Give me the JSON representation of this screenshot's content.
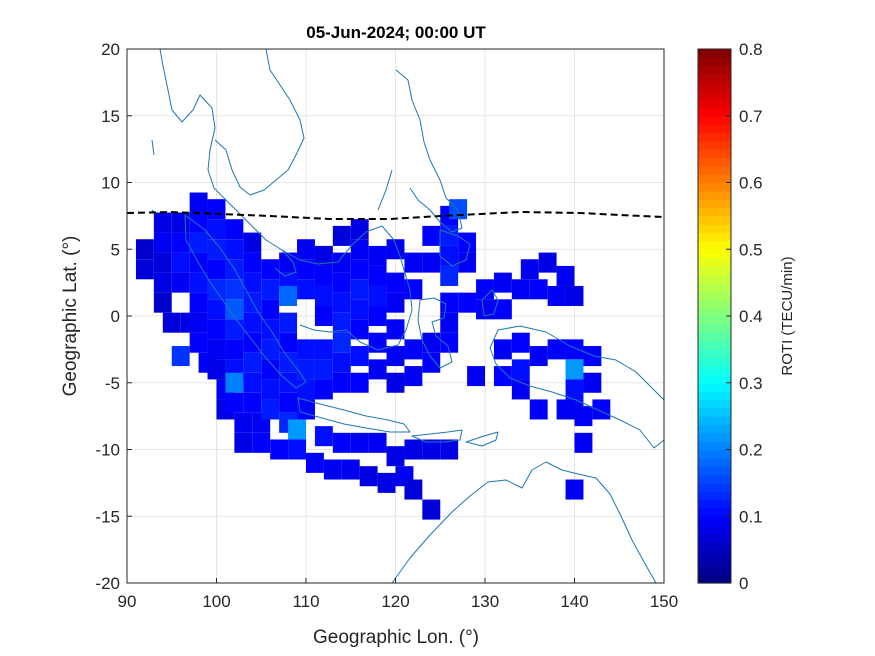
{
  "chart_data": {
    "type": "heatmap",
    "title": "05-Jun-2024; 00:00 UT",
    "xlabel": "Geographic Lon. (°)",
    "ylabel": "Geographic Lat. (°)",
    "xlim": [
      90,
      150
    ],
    "ylim": [
      -20,
      20
    ],
    "xticks": [
      "90",
      "100",
      "110",
      "120",
      "130",
      "140",
      "150"
    ],
    "yticks": [
      "20",
      "15",
      "10",
      "5",
      "0",
      "-5",
      "-10",
      "-15",
      "-20"
    ],
    "grid": true,
    "colormap": "jet",
    "colorbar": {
      "label": "ROTI (TECU/min)",
      "lim": [
        0,
        0.8
      ],
      "ticks": [
        "0",
        "0.1",
        "0.2",
        "0.3",
        "0.4",
        "0.5",
        "0.6",
        "0.7",
        "0.8"
      ],
      "placement": "right"
    },
    "cell_size_deg": [
      2,
      1.5
    ],
    "cells": [
      {
        "lon": 92,
        "lat": 5.0,
        "v": 0.06
      },
      {
        "lon": 92,
        "lat": 3.5,
        "v": 0.07
      },
      {
        "lon": 94,
        "lat": 7.0,
        "v": 0.08
      },
      {
        "lon": 94,
        "lat": 5.5,
        "v": 0.09
      },
      {
        "lon": 94,
        "lat": 4.0,
        "v": 0.07
      },
      {
        "lon": 94,
        "lat": 2.5,
        "v": 0.08
      },
      {
        "lon": 94,
        "lat": 1.0,
        "v": 0.06
      },
      {
        "lon": 95,
        "lat": -0.5,
        "v": 0.07
      },
      {
        "lon": 96,
        "lat": 7.0,
        "v": 0.08
      },
      {
        "lon": 96,
        "lat": 5.5,
        "v": 0.1
      },
      {
        "lon": 96,
        "lat": 4.0,
        "v": 0.11
      },
      {
        "lon": 96,
        "lat": 2.5,
        "v": 0.09
      },
      {
        "lon": 96,
        "lat": -3.0,
        "v": 0.14
      },
      {
        "lon": 97,
        "lat": -0.5,
        "v": 0.08
      },
      {
        "lon": 98,
        "lat": 8.5,
        "v": 0.09
      },
      {
        "lon": 98,
        "lat": 7.0,
        "v": 0.1
      },
      {
        "lon": 98,
        "lat": 5.5,
        "v": 0.12
      },
      {
        "lon": 98,
        "lat": 4.0,
        "v": 0.1
      },
      {
        "lon": 98,
        "lat": 2.5,
        "v": 0.11
      },
      {
        "lon": 98,
        "lat": 1.0,
        "v": 0.1
      },
      {
        "lon": 98,
        "lat": -0.5,
        "v": 0.09
      },
      {
        "lon": 98,
        "lat": -2.0,
        "v": 0.1
      },
      {
        "lon": 99,
        "lat": -3.5,
        "v": 0.09
      },
      {
        "lon": 100,
        "lat": 8.0,
        "v": 0.1
      },
      {
        "lon": 100,
        "lat": 6.5,
        "v": 0.11
      },
      {
        "lon": 100,
        "lat": 5.0,
        "v": 0.12
      },
      {
        "lon": 100,
        "lat": 3.5,
        "v": 0.1
      },
      {
        "lon": 100,
        "lat": 2.0,
        "v": 0.13
      },
      {
        "lon": 100,
        "lat": 0.5,
        "v": 0.11
      },
      {
        "lon": 100,
        "lat": -1.0,
        "v": 0.1
      },
      {
        "lon": 100,
        "lat": -2.5,
        "v": 0.09
      },
      {
        "lon": 100,
        "lat": -4.0,
        "v": 0.08
      },
      {
        "lon": 101,
        "lat": -5.5,
        "v": 0.09
      },
      {
        "lon": 101,
        "lat": -7.0,
        "v": 0.08
      },
      {
        "lon": 102,
        "lat": 6.5,
        "v": 0.1
      },
      {
        "lon": 102,
        "lat": 5.0,
        "v": 0.11
      },
      {
        "lon": 102,
        "lat": 3.5,
        "v": 0.12
      },
      {
        "lon": 102,
        "lat": 2.0,
        "v": 0.14
      },
      {
        "lon": 102,
        "lat": 0.5,
        "v": 0.17
      },
      {
        "lon": 102,
        "lat": -1.0,
        "v": 0.12
      },
      {
        "lon": 102,
        "lat": -2.5,
        "v": 0.1
      },
      {
        "lon": 102,
        "lat": -4.0,
        "v": 0.11
      },
      {
        "lon": 102,
        "lat": -5.0,
        "v": 0.2
      },
      {
        "lon": 102,
        "lat": -6.5,
        "v": 0.1
      },
      {
        "lon": 103,
        "lat": -8.0,
        "v": 0.09
      },
      {
        "lon": 103,
        "lat": -9.5,
        "v": 0.08
      },
      {
        "lon": 104,
        "lat": 5.5,
        "v": 0.08
      },
      {
        "lon": 104,
        "lat": 4.0,
        "v": 0.1
      },
      {
        "lon": 104,
        "lat": 2.5,
        "v": 0.11
      },
      {
        "lon": 104,
        "lat": 1.0,
        "v": 0.12
      },
      {
        "lon": 104,
        "lat": -0.5,
        "v": 0.11
      },
      {
        "lon": 104,
        "lat": -2.0,
        "v": 0.1
      },
      {
        "lon": 104,
        "lat": -3.5,
        "v": 0.12
      },
      {
        "lon": 104,
        "lat": -5.0,
        "v": 0.11
      },
      {
        "lon": 104,
        "lat": -6.5,
        "v": 0.1
      },
      {
        "lon": 105,
        "lat": -8.0,
        "v": 0.09
      },
      {
        "lon": 105,
        "lat": -9.5,
        "v": 0.1
      },
      {
        "lon": 106,
        "lat": 3.5,
        "v": 0.1
      },
      {
        "lon": 106,
        "lat": 2.0,
        "v": 0.12
      },
      {
        "lon": 106,
        "lat": 0.5,
        "v": 0.1
      },
      {
        "lon": 106,
        "lat": -1.0,
        "v": 0.11
      },
      {
        "lon": 106,
        "lat": -2.5,
        "v": 0.12
      },
      {
        "lon": 106,
        "lat": -4.0,
        "v": 0.1
      },
      {
        "lon": 106,
        "lat": -5.5,
        "v": 0.11
      },
      {
        "lon": 106,
        "lat": -7.0,
        "v": 0.12
      },
      {
        "lon": 107,
        "lat": -10.0,
        "v": 0.1
      },
      {
        "lon": 108,
        "lat": 4.0,
        "v": 0.09
      },
      {
        "lon": 108,
        "lat": 2.5,
        "v": 0.11
      },
      {
        "lon": 108,
        "lat": 1.5,
        "v": 0.18
      },
      {
        "lon": 108,
        "lat": -0.5,
        "v": 0.12
      },
      {
        "lon": 108,
        "lat": -2.0,
        "v": 0.1
      },
      {
        "lon": 108,
        "lat": -3.5,
        "v": 0.12
      },
      {
        "lon": 108,
        "lat": -5.0,
        "v": 0.11
      },
      {
        "lon": 108,
        "lat": -6.5,
        "v": 0.1
      },
      {
        "lon": 108,
        "lat": -8.0,
        "v": 0.13
      },
      {
        "lon": 109,
        "lat": -10.0,
        "v": 0.11
      },
      {
        "lon": 109,
        "lat": -8.5,
        "v": 0.22
      },
      {
        "lon": 110,
        "lat": 5.0,
        "v": 0.09
      },
      {
        "lon": 110,
        "lat": 3.5,
        "v": 0.1
      },
      {
        "lon": 110,
        "lat": 2.0,
        "v": 0.11
      },
      {
        "lon": 110,
        "lat": -2.5,
        "v": 0.11
      },
      {
        "lon": 110,
        "lat": -4.0,
        "v": 0.12
      },
      {
        "lon": 110,
        "lat": -5.5,
        "v": 0.11
      },
      {
        "lon": 110,
        "lat": -7.0,
        "v": 0.1
      },
      {
        "lon": 111,
        "lat": -11.0,
        "v": 0.1
      },
      {
        "lon": 112,
        "lat": 4.5,
        "v": 0.08
      },
      {
        "lon": 112,
        "lat": 3.0,
        "v": 0.1
      },
      {
        "lon": 112,
        "lat": 1.5,
        "v": 0.11
      },
      {
        "lon": 112,
        "lat": 0.0,
        "v": 0.1
      },
      {
        "lon": 112,
        "lat": -2.5,
        "v": 0.11
      },
      {
        "lon": 112,
        "lat": -4.0,
        "v": 0.12
      },
      {
        "lon": 112,
        "lat": -5.5,
        "v": 0.1
      },
      {
        "lon": 112,
        "lat": -9.0,
        "v": 0.11
      },
      {
        "lon": 113,
        "lat": -11.5,
        "v": 0.09
      },
      {
        "lon": 114,
        "lat": 6.0,
        "v": 0.07
      },
      {
        "lon": 114,
        "lat": 4.0,
        "v": 0.09
      },
      {
        "lon": 114,
        "lat": 2.5,
        "v": 0.1
      },
      {
        "lon": 114,
        "lat": 1.0,
        "v": 0.11
      },
      {
        "lon": 114,
        "lat": -0.5,
        "v": 0.12
      },
      {
        "lon": 114,
        "lat": -2.0,
        "v": 0.13
      },
      {
        "lon": 114,
        "lat": -3.5,
        "v": 0.11
      },
      {
        "lon": 114,
        "lat": -5.0,
        "v": 0.1
      },
      {
        "lon": 114,
        "lat": -9.5,
        "v": 0.1
      },
      {
        "lon": 115,
        "lat": -11.5,
        "v": 0.09
      },
      {
        "lon": 116,
        "lat": 6.5,
        "v": 0.08
      },
      {
        "lon": 116,
        "lat": 5.0,
        "v": 0.09
      },
      {
        "lon": 116,
        "lat": 3.5,
        "v": 0.1
      },
      {
        "lon": 116,
        "lat": 2.0,
        "v": 0.12
      },
      {
        "lon": 116,
        "lat": 0.5,
        "v": 0.11
      },
      {
        "lon": 116,
        "lat": -1.0,
        "v": 0.1
      },
      {
        "lon": 116,
        "lat": -3.0,
        "v": 0.11
      },
      {
        "lon": 116,
        "lat": -5.0,
        "v": 0.1
      },
      {
        "lon": 116,
        "lat": -9.5,
        "v": 0.09
      },
      {
        "lon": 117,
        "lat": -12.0,
        "v": 0.08
      },
      {
        "lon": 118,
        "lat": 4.5,
        "v": 0.09
      },
      {
        "lon": 118,
        "lat": 3.0,
        "v": 0.1
      },
      {
        "lon": 118,
        "lat": 1.5,
        "v": 0.11
      },
      {
        "lon": 118,
        "lat": 0.0,
        "v": 0.1
      },
      {
        "lon": 118,
        "lat": -2.0,
        "v": 0.1
      },
      {
        "lon": 118,
        "lat": -4.0,
        "v": 0.09
      },
      {
        "lon": 118,
        "lat": -9.5,
        "v": 0.09
      },
      {
        "lon": 119,
        "lat": -12.5,
        "v": 0.08
      },
      {
        "lon": 120,
        "lat": 5.0,
        "v": 0.09
      },
      {
        "lon": 120,
        "lat": 2.5,
        "v": 0.1
      },
      {
        "lon": 120,
        "lat": 1.0,
        "v": 0.09
      },
      {
        "lon": 120,
        "lat": -1.0,
        "v": 0.1
      },
      {
        "lon": 120,
        "lat": -3.0,
        "v": 0.09
      },
      {
        "lon": 120,
        "lat": -5.0,
        "v": 0.08
      },
      {
        "lon": 120,
        "lat": -10.5,
        "v": 0.08
      },
      {
        "lon": 121,
        "lat": -12.0,
        "v": 0.09
      },
      {
        "lon": 122,
        "lat": 4.0,
        "v": 0.09
      },
      {
        "lon": 122,
        "lat": 2.0,
        "v": 0.1
      },
      {
        "lon": 122,
        "lat": -2.5,
        "v": 0.1
      },
      {
        "lon": 122,
        "lat": -4.5,
        "v": 0.09
      },
      {
        "lon": 122,
        "lat": -10.0,
        "v": 0.08
      },
      {
        "lon": 122,
        "lat": -13.0,
        "v": 0.07
      },
      {
        "lon": 124,
        "lat": 4.0,
        "v": 0.09
      },
      {
        "lon": 124,
        "lat": 6.0,
        "v": 0.1
      },
      {
        "lon": 124,
        "lat": -2.0,
        "v": 0.09
      },
      {
        "lon": 124,
        "lat": -3.5,
        "v": 0.1
      },
      {
        "lon": 124,
        "lat": -10.0,
        "v": 0.08
      },
      {
        "lon": 124,
        "lat": -14.5,
        "v": 0.07
      },
      {
        "lon": 126,
        "lat": 7.5,
        "v": 0.1
      },
      {
        "lon": 126,
        "lat": 6.0,
        "v": 0.12
      },
      {
        "lon": 126,
        "lat": 4.5,
        "v": 0.11
      },
      {
        "lon": 126,
        "lat": 3.0,
        "v": 0.13
      },
      {
        "lon": 126,
        "lat": 1.0,
        "v": 0.1
      },
      {
        "lon": 126,
        "lat": -0.5,
        "v": 0.09
      },
      {
        "lon": 126,
        "lat": -2.0,
        "v": 0.1
      },
      {
        "lon": 126,
        "lat": -10.0,
        "v": 0.08
      },
      {
        "lon": 127,
        "lat": 8.0,
        "v": 0.16
      },
      {
        "lon": 128,
        "lat": 5.5,
        "v": 0.1
      },
      {
        "lon": 128,
        "lat": 4.0,
        "v": 0.09
      },
      {
        "lon": 128,
        "lat": 1.0,
        "v": 0.1
      },
      {
        "lon": 129,
        "lat": -4.5,
        "v": 0.09
      },
      {
        "lon": 130,
        "lat": 0.5,
        "v": 0.09
      },
      {
        "lon": 130,
        "lat": 2.0,
        "v": 0.1
      },
      {
        "lon": 132,
        "lat": 2.5,
        "v": 0.09
      },
      {
        "lon": 132,
        "lat": 0.5,
        "v": 0.1
      },
      {
        "lon": 132,
        "lat": -2.5,
        "v": 0.09
      },
      {
        "lon": 132,
        "lat": -4.5,
        "v": 0.1
      },
      {
        "lon": 134,
        "lat": 2.0,
        "v": 0.09
      },
      {
        "lon": 134,
        "lat": -2.0,
        "v": 0.1
      },
      {
        "lon": 134,
        "lat": -4.0,
        "v": 0.11
      },
      {
        "lon": 134,
        "lat": -5.5,
        "v": 0.09
      },
      {
        "lon": 135,
        "lat": 3.5,
        "v": 0.09
      },
      {
        "lon": 136,
        "lat": 2.0,
        "v": 0.1
      },
      {
        "lon": 136,
        "lat": -3.0,
        "v": 0.09
      },
      {
        "lon": 136,
        "lat": -7.0,
        "v": 0.1
      },
      {
        "lon": 137,
        "lat": 4.0,
        "v": 0.08
      },
      {
        "lon": 138,
        "lat": 1.5,
        "v": 0.09
      },
      {
        "lon": 138,
        "lat": -2.5,
        "v": 0.1
      },
      {
        "lon": 139,
        "lat": 3.0,
        "v": 0.09
      },
      {
        "lon": 140,
        "lat": 1.5,
        "v": 0.08
      },
      {
        "lon": 140,
        "lat": -2.5,
        "v": 0.1
      },
      {
        "lon": 140,
        "lat": -4.0,
        "v": 0.22
      },
      {
        "lon": 140,
        "lat": -5.5,
        "v": 0.11
      },
      {
        "lon": 140,
        "lat": -7.0,
        "v": 0.1
      },
      {
        "lon": 140,
        "lat": -13.0,
        "v": 0.09
      },
      {
        "lon": 139,
        "lat": -7.0,
        "v": 0.09
      },
      {
        "lon": 141,
        "lat": -7.5,
        "v": 0.09
      },
      {
        "lon": 142,
        "lat": -3.0,
        "v": 0.1
      },
      {
        "lon": 142,
        "lat": -5.0,
        "v": 0.09
      },
      {
        "lon": 143,
        "lat": -7.0,
        "v": 0.1
      },
      {
        "lon": 141,
        "lat": -9.5,
        "v": 0.09
      }
    ]
  }
}
